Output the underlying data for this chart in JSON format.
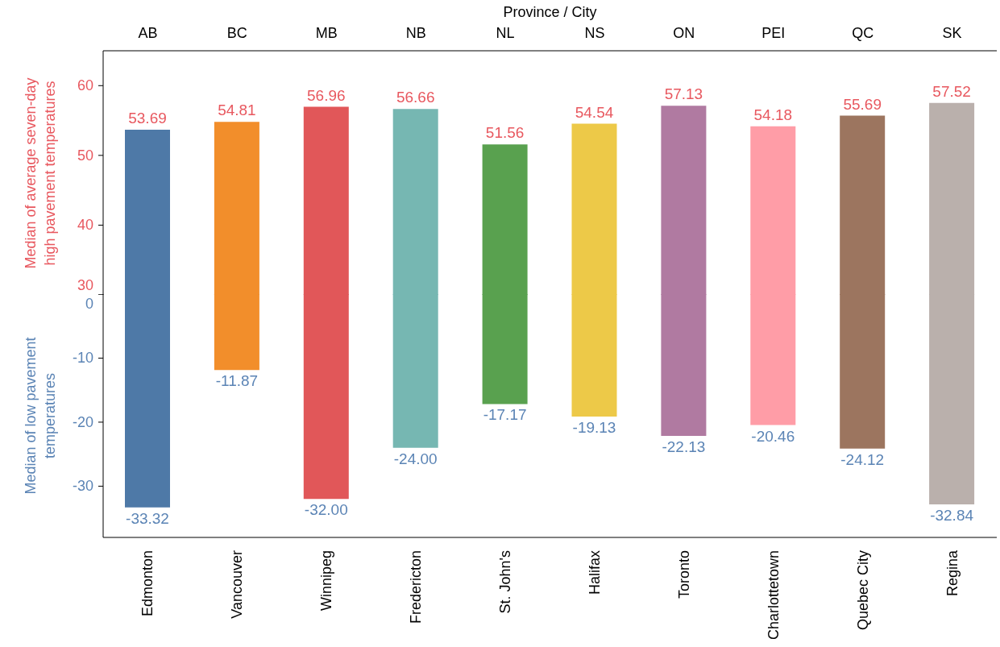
{
  "chart_data": [
    {
      "type": "bar",
      "xlabel": "Province / City",
      "ylabel": "Median of average seven-day high pavement temperatures",
      "categories": [
        "AB",
        "BC",
        "MB",
        "NB",
        "NL",
        "NS",
        "ON",
        "PEI",
        "QC",
        "SK"
      ],
      "values": [
        53.69,
        54.81,
        56.96,
        56.66,
        51.56,
        54.54,
        57.13,
        54.18,
        55.69,
        57.52
      ],
      "value_labels": [
        "53.69",
        "54.81",
        "56.96",
        "56.66",
        "51.56",
        "54.54",
        "57.13",
        "54.18",
        "55.69",
        "57.52"
      ],
      "colors": [
        "#4e79a7",
        "#f28e2b",
        "#e15759",
        "#76b7b2",
        "#59a14f",
        "#edc948",
        "#b07aa1",
        "#ff9da7",
        "#9c755f",
        "#bab0ac"
      ],
      "ylim": [
        30,
        65
      ],
      "yticks": [
        30,
        40,
        50,
        60
      ],
      "grid": false,
      "legend": false
    },
    {
      "type": "bar",
      "ylabel": "Median of low pavement temperatures",
      "categories": [
        "Edmonton",
        "Vancouver",
        "Winnipeg",
        "Fredericton",
        "St. John's",
        "Halifax",
        "Toronto",
        "Charlottetown",
        "Quebec City",
        "Regina"
      ],
      "values": [
        -33.32,
        -11.87,
        -32.0,
        -24.0,
        -17.17,
        -19.13,
        -22.13,
        -20.46,
        -24.12,
        -32.84
      ],
      "value_labels": [
        "-33.32",
        "-11.87",
        "-32.00",
        "-24.00",
        "-17.17",
        "-19.13",
        "-22.13",
        "-20.46",
        "-24.12",
        "-32.84"
      ],
      "colors": [
        "#4e79a7",
        "#f28e2b",
        "#e15759",
        "#76b7b2",
        "#59a14f",
        "#edc948",
        "#b07aa1",
        "#ff9da7",
        "#9c755f",
        "#bab0ac"
      ],
      "ylim": [
        -38,
        0
      ],
      "yticks": [
        -30,
        -20,
        -10,
        0
      ],
      "grid": false,
      "legend": false
    }
  ]
}
